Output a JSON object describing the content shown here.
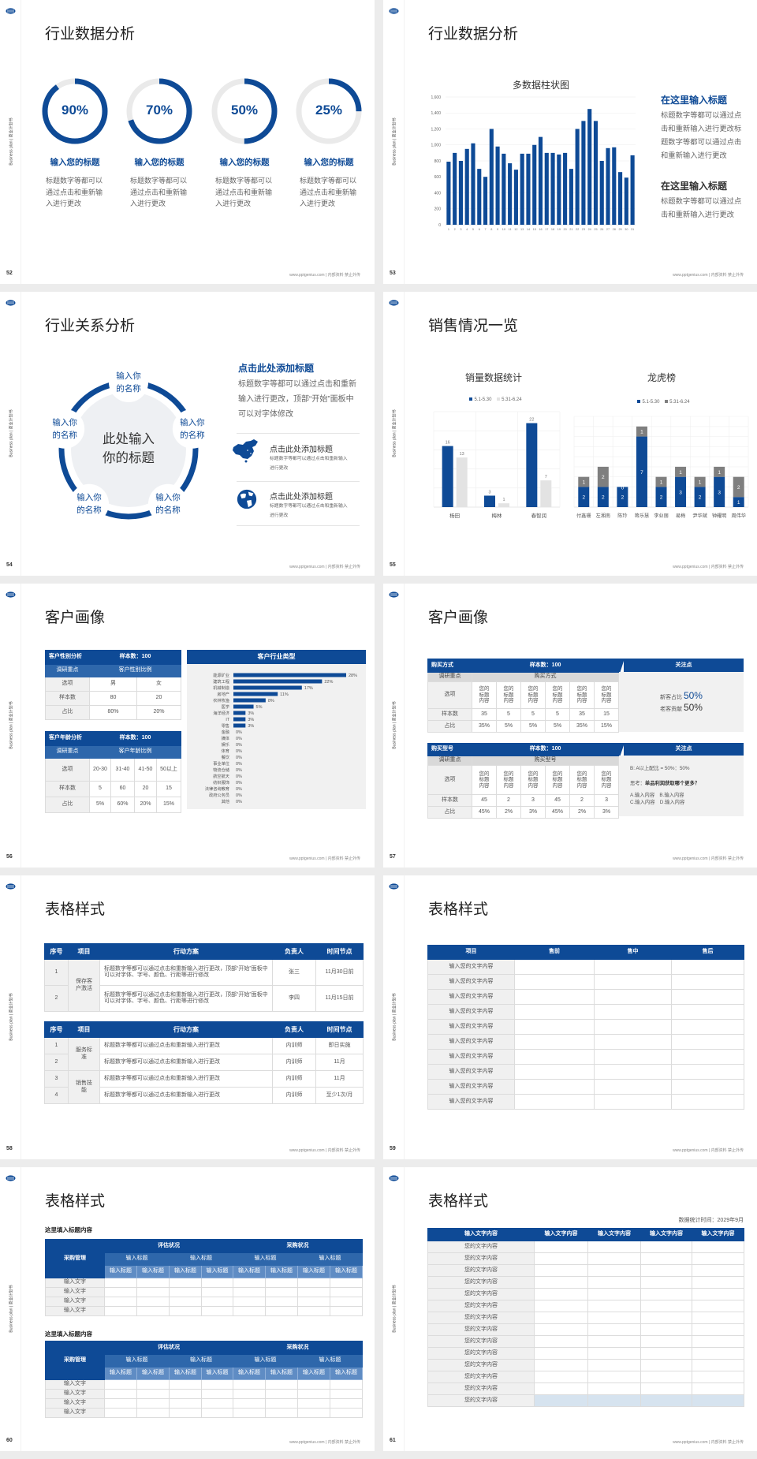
{
  "common": {
    "side_label": "Business plan | 商业计划书",
    "footer": "www.pptgenius.com | 内部资料 禁止外传",
    "logo_icon": "company-logo",
    "colors": {
      "primary": "#0e4a96",
      "secondary": "#2e67ab",
      "ring_track": "#eaeaea",
      "series_gray": "#7f7f7f",
      "series_light": "#e3e3e3",
      "label_bg": "#f0f0f0"
    }
  },
  "s52": {
    "page": "52",
    "title": "行业数据分析",
    "rings": [
      {
        "value": 90,
        "label": "90%",
        "heading": "输入您的标题",
        "body": "标题数字等都可以通过点击和重新输入进行更改"
      },
      {
        "value": 70,
        "label": "70%",
        "heading": "输入您的标题",
        "body": "标题数字等都可以通过点击和重新输入进行更改"
      },
      {
        "value": 50,
        "label": "50%",
        "heading": "输入您的标题",
        "body": "标题数字等都可以通过点击和重新输入进行更改"
      },
      {
        "value": 25,
        "label": "25%",
        "heading": "输入您的标题",
        "body": "标题数字等都可以通过点击和重新输入进行更改"
      }
    ]
  },
  "s53": {
    "page": "53",
    "title": "行业数据分析",
    "heading1": "在这里输入标题",
    "body1": "标题数字等都可以通过点击和重新输入进行更改标题数字等都可以通过点击和重新输入进行更改",
    "heading2": "在这里输入标题",
    "body2": "标题数字等都可以通过点击和重新输入进行更改"
  },
  "s54": {
    "page": "54",
    "title": "行业关系分析",
    "center": "此处输入你的标题",
    "nodes": [
      "输入你的名称",
      "输入你的名称",
      "输入你的名称",
      "输入你的名称",
      "输入你的名称"
    ],
    "heading": "点击此处添加标题",
    "body": "标题数字等都可以通过点击和重新输入进行更改，顶部“开始”面板中可以对字体修改",
    "items": [
      {
        "icon": "china-map-icon",
        "title": "点击此处添加标题",
        "body": "标题数字等都可以通过点击和重新输入进行更改"
      },
      {
        "icon": "globe-icon",
        "title": "点击此处添加标题",
        "body": "标题数字等都可以通过点击和重新输入进行更改"
      }
    ]
  },
  "s55": {
    "page": "55",
    "title": "销售情况一览"
  },
  "s56": {
    "page": "56",
    "title": "客户画像",
    "gender": {
      "title": "客户性别分析",
      "sample": "样本数：100",
      "focus_label": "调研重点",
      "focus": "客户性别比例",
      "rows": [
        [
          "选项",
          "男",
          "女"
        ],
        [
          "样本数",
          "80",
          "20"
        ],
        [
          "占比",
          "80%",
          "20%"
        ]
      ]
    },
    "age": {
      "title": "客户年龄分析",
      "sample": "样本数：100",
      "focus_label": "调研重点",
      "focus": "客户年龄比例",
      "rows": [
        [
          "选项",
          "20-30",
          "31-40",
          "41-50",
          "50以上"
        ],
        [
          "样本数",
          "5",
          "60",
          "20",
          "15"
        ],
        [
          "占比",
          "5%",
          "60%",
          "20%",
          "15%"
        ]
      ]
    },
    "industry_title": "客户行业类型"
  },
  "s57": {
    "page": "57",
    "title": "客户画像",
    "method": {
      "title": "购买方式",
      "sample": "样本数：100",
      "focus_label": "调研重点",
      "focus": "购买方式",
      "rows": [
        [
          "选项",
          "您的标题内容",
          "您的标题内容",
          "您的标题内容",
          "您的标题内容",
          "您的标题内容",
          "您的标题内容"
        ],
        [
          "样本数",
          "35",
          "5",
          "5",
          "5",
          "35",
          "15"
        ],
        [
          "占比",
          "35%",
          "5%",
          "5%",
          "5%",
          "35%",
          "15%"
        ]
      ]
    },
    "model": {
      "title": "购买型号",
      "sample": "样本数：100",
      "focus_label": "调研重点",
      "focus": "购买型号",
      "rows": [
        [
          "选项",
          "您的标题内容",
          "您的标题内容",
          "您的标题内容",
          "您的标题内容",
          "您的标题内容",
          "您的标题内容"
        ],
        [
          "样本数",
          "45",
          "2",
          "3",
          "45",
          "2",
          "3"
        ],
        [
          "占比",
          "45%",
          "2%",
          "3%",
          "45%",
          "2%",
          "3%"
        ]
      ]
    },
    "panel1": {
      "title": "关注点",
      "line1_label": "新客占比 ",
      "line1_value": "50%",
      "line2_label": "老客贡献 ",
      "line2_value": "50%"
    },
    "panel2": {
      "title": "关注点",
      "ratio": "B: A以上配比 = 50%：50%",
      "think_label": "思考：",
      "think": "单品利润获取哪个更多？",
      "options1": "A.输入内容　B.输入内容",
      "options2": "C.输入内容　D.输入内容"
    }
  },
  "s58": {
    "page": "58",
    "title": "表格样式",
    "headers": [
      "序号",
      "项目",
      "行动方案",
      "负责人",
      "时间节点"
    ],
    "table1": [
      {
        "item": "保存客户激活",
        "rows": [
          [
            "1",
            "标题数字等都可以通过点击和重新输入进行更改，顶部“开始”面板中可以对字体、字号、颜色、行距等进行修改",
            "张三",
            "11月30日前"
          ],
          [
            "2",
            "标题数字等都可以通过点击和重新输入进行更改，顶部“开始”面板中可以对字体、字号、颜色、行距等进行修改",
            "李四",
            "11月15日前"
          ]
        ]
      }
    ],
    "table2": [
      {
        "item": "服务标准",
        "rows": [
          [
            "1",
            "标题数字等都可以通过点击和重新输入进行更改",
            "内训师",
            "即日实施"
          ],
          [
            "2",
            "标题数字等都可以通过点击和重新输入进行更改",
            "内训师",
            "11月"
          ]
        ]
      },
      {
        "item": "销售技能",
        "rows": [
          [
            "3",
            "标题数字等都可以通过点击和重新输入进行更改",
            "内训师",
            "11月"
          ],
          [
            "4",
            "标题数字等都可以通过点击和重新输入进行更改",
            "内训师",
            "至少1次/月"
          ]
        ]
      }
    ]
  },
  "s59": {
    "page": "59",
    "title": "表格样式",
    "headers": [
      "项目",
      "售前",
      "售中",
      "售后"
    ],
    "rows": [
      "输入您的文字内容",
      "输入您的文字内容",
      "输入您的文字内容",
      "输入您的文字内容",
      "输入您的文字内容",
      "输入您的文字内容",
      "输入您的文字内容",
      "输入您的文字内容",
      "输入您的文字内容",
      "输入您的文字内容"
    ]
  },
  "s60": {
    "page": "60",
    "title": "表格样式",
    "tables": [
      {
        "heading": "这里填入标题内容",
        "corner": "采购管理",
        "groups": [
          "评估状况",
          "采购状况"
        ],
        "sub": [
          "输入标题",
          "输入标题",
          "输入标题",
          "输入标题"
        ],
        "subsub": [
          "输入标题",
          "输入标题",
          "输入标题",
          "输入标题",
          "输入标题",
          "输入标题",
          "输入标题",
          "输入标题"
        ],
        "rows": [
          "输入文字",
          "输入文字",
          "输入文字",
          "输入文字"
        ]
      },
      {
        "heading": "这里填入标题内容",
        "corner": "采购管理",
        "groups": [
          "评估状况",
          "采购状况"
        ],
        "sub": [
          "输入标题",
          "输入标题",
          "输入标题",
          "输入标题"
        ],
        "subsub": [
          "输入标题",
          "输入标题",
          "输入标题",
          "输入标题",
          "输入标题",
          "输入标题",
          "输入标题",
          "输入标题"
        ],
        "rows": [
          "输入文字",
          "输入文字",
          "输入文字",
          "输入文字"
        ]
      }
    ]
  },
  "s61": {
    "page": "61",
    "title": "表格样式",
    "date": "数据统计时间：2029年9月",
    "headers": [
      "输入文字内容",
      "输入文字内容",
      "输入文字内容",
      "输入文字内容",
      "输入文字内容"
    ],
    "rows": [
      "您的文字内容",
      "您的文字内容",
      "您的文字内容",
      "您的文字内容",
      "您的文字内容",
      "您的文字内容",
      "您的文字内容",
      "您的文字内容",
      "您的文字内容",
      "您的文字内容",
      "您的文字内容",
      "您的文字内容",
      "您的文字内容",
      "您的文字内容"
    ]
  },
  "chart_data": [
    {
      "id": "s53",
      "type": "bar",
      "title": "多数据柱状图",
      "xlabel": "",
      "ylabel": "",
      "categories": [
        "1",
        "2",
        "3",
        "4",
        "5",
        "6",
        "7",
        "8",
        "9",
        "10",
        "11",
        "12",
        "13",
        "14",
        "15",
        "16",
        "17",
        "18",
        "19",
        "20",
        "21",
        "22",
        "23",
        "24",
        "25",
        "26",
        "27",
        "28",
        "29",
        "30",
        "31"
      ],
      "values": [
        790,
        900,
        800,
        950,
        1020,
        700,
        600,
        1200,
        980,
        890,
        770,
        690,
        890,
        890,
        1000,
        1100,
        900,
        900,
        880,
        900,
        700,
        1200,
        1300,
        1450,
        1300,
        800,
        960,
        970,
        660,
        590,
        870
      ],
      "ylim": [
        0,
        1600
      ],
      "yticks": [
        0,
        200,
        400,
        600,
        800,
        1000,
        1200,
        1400,
        1600
      ],
      "grid": true,
      "color": "#0e4a96"
    },
    {
      "id": "s55-left",
      "type": "bar",
      "title": "销量数据统计",
      "categories": [
        "杨田",
        "梅林",
        "春智润"
      ],
      "series": [
        {
          "name": "5.1-5.30",
          "values": [
            16,
            3,
            22
          ],
          "color": "#0e4a96"
        },
        {
          "name": "5.31-6.24",
          "values": [
            13,
            1,
            7
          ],
          "color": "#e3e3e3"
        }
      ],
      "ylim": [
        0,
        25
      ],
      "legend": "top",
      "grid": true
    },
    {
      "id": "s55-right",
      "type": "bar",
      "stacked": true,
      "title": "龙虎榜",
      "categories": [
        "付鑫珊",
        "左湘南",
        "陈玲",
        "蒋乐慧",
        "李业丽",
        "易梅",
        "尹华斌",
        "钟耀明",
        "周伟华"
      ],
      "series": [
        {
          "name": "5.1-5.30",
          "values": [
            2,
            2,
            2,
            7,
            2,
            3,
            2,
            3,
            1
          ],
          "color": "#0e4a96"
        },
        {
          "name": "5.31-6.24",
          "values": [
            1,
            2,
            0,
            1,
            1,
            1,
            1,
            1,
            2
          ],
          "color": "#7f7f7f"
        }
      ],
      "ylim": [
        0,
        9
      ],
      "legend": "top",
      "grid": true
    },
    {
      "id": "s56-industry",
      "type": "bar",
      "orientation": "horizontal",
      "title": "客户行业类型",
      "categories": [
        "能源矿业",
        "建筑工程",
        "机械制造",
        "房地产",
        "农林牧渔",
        "医学",
        "海洋经济",
        "IT",
        "零售",
        "金融",
        "媒体",
        "娱乐",
        "体育",
        "餐饮",
        "事业单位",
        "物流仓储",
        "航空航天",
        "纺织服饰",
        "法律咨询教育",
        "政府公务员",
        "其他"
      ],
      "values": [
        28,
        22,
        17,
        11,
        8,
        5,
        3,
        3,
        3,
        0,
        0,
        0,
        0,
        0,
        0,
        0,
        0,
        0,
        0,
        0,
        0
      ],
      "labels": [
        "28%",
        "22%",
        "17%",
        "11%",
        "8%",
        "5%",
        "3%",
        "3%",
        "3%",
        "0%",
        "0%",
        "0%",
        "0%",
        "0%",
        "0%",
        "0%",
        "0%",
        "0%",
        "0%",
        "0%",
        "0%"
      ],
      "xlim": [
        0,
        30
      ],
      "color": "#0e4a96"
    }
  ]
}
